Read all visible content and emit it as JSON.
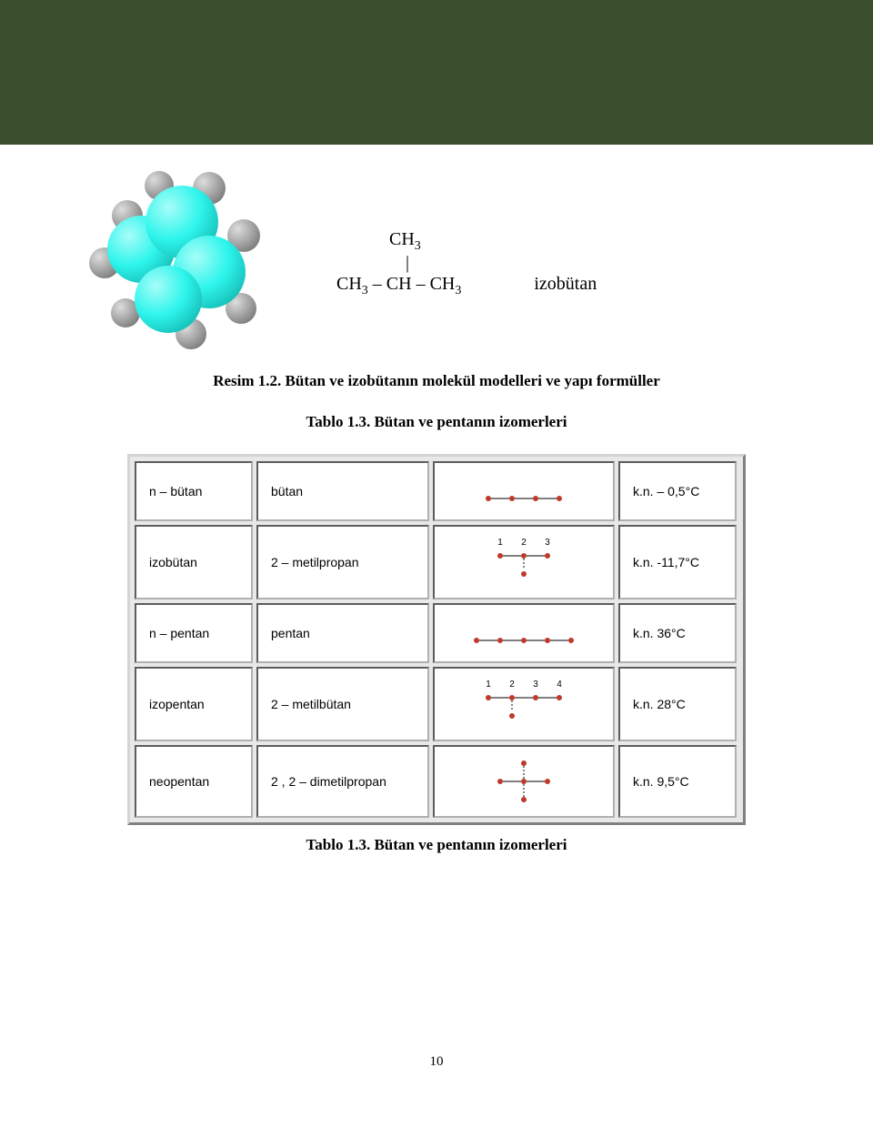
{
  "colors": {
    "band": "#3a4f2e",
    "divider": "#3a4f2e",
    "carbon": "#2ef5ec",
    "carbon_hl": "#a8fdf9",
    "carbon_dk": "#0aa19a",
    "hydrogen": "#888888",
    "hydrogen_hl": "#dddddd",
    "cell_bg": "#ffffff",
    "table_bg": "#e8e8e8",
    "atom_red": "#c0392b",
    "bond": "#333333"
  },
  "formula": {
    "top_frag": "CH",
    "top_sub": "3",
    "main_frag1": "CH",
    "main_sub1": "3",
    "main_frag2": " – CH – CH",
    "main_sub2": "3",
    "label": "izobütan"
  },
  "caption_fig": "Resim 1.2. Bütan ve izobütanın molekül modelleri ve yapı formüller",
  "caption_tab_top": "Tablo 1.3. Bütan ve pentanın izomerleri",
  "caption_tab_bot": "Tablo 1.3. Bütan ve pentanın izomerleri",
  "table": {
    "rows": [
      {
        "a": "n – bütan",
        "b": "bütan",
        "d": "k.n. – 0,5°C",
        "chain": {
          "type": "linear",
          "n": 4
        }
      },
      {
        "a": "izobütan",
        "b": "2 – metilpropan",
        "d": "k.n. -11,7°C",
        "chain": {
          "type": "branched",
          "n": 3,
          "branch_at": 2,
          "numbers": [
            1,
            2,
            3
          ]
        }
      },
      {
        "a": "n – pentan",
        "b": "pentan",
        "d": "k.n. 36°C",
        "chain": {
          "type": "linear",
          "n": 5
        }
      },
      {
        "a": "izopentan",
        "b": "2 – metilbütan",
        "d": "k.n. 28°C",
        "chain": {
          "type": "branched",
          "n": 4,
          "branch_at": 2,
          "numbers": [
            1,
            2,
            3,
            4
          ]
        }
      },
      {
        "a": "neopentan",
        "b": "2 , 2 – dimetilpropan",
        "d": "k.n. 9,5°C",
        "chain": {
          "type": "doublebranched",
          "n": 3,
          "branch_at": 2
        }
      }
    ]
  },
  "page_num": "10"
}
